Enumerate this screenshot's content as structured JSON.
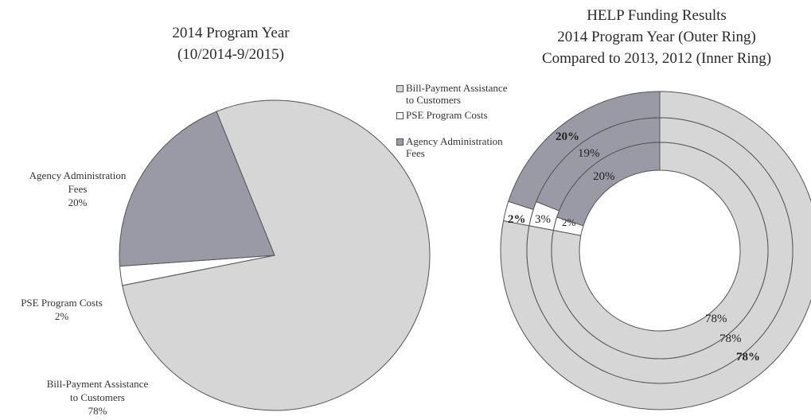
{
  "colors": {
    "bill_payment": "#d6d6d6",
    "pse_program": "#ffffff",
    "agency_admin": "#9a9aa6",
    "stroke": "#555555"
  },
  "left_title": {
    "line1": "2014 Program Year",
    "line2": "(10/2014-9/2015)"
  },
  "right_title": {
    "line1": "HELP Funding Results",
    "line2": "2014 Program Year (Outer Ring)",
    "line3": "Compared to 2013, 2012 (Inner Ring)"
  },
  "legend": [
    {
      "label_line1": "Bill-Payment Assistance",
      "label_line2": "to Customers",
      "color_key": "bill_payment"
    },
    {
      "label_line1": "PSE Program Costs",
      "label_line2": "",
      "color_key": "pse_program"
    },
    {
      "label_line1": "Agency Administration",
      "label_line2": "Fees",
      "color_key": "agency_admin"
    }
  ],
  "left_labels": {
    "agency": {
      "line1": "Agency Administration",
      "line2": "Fees",
      "line3": "20%"
    },
    "pse": {
      "line1": "PSE Program Costs",
      "line2": "2%"
    },
    "bill": {
      "line1": "Bill-Payment  Assistance",
      "line2": "to Customers",
      "line3": "78%"
    }
  },
  "chart_data": [
    {
      "type": "pie",
      "title": "2014 Program Year (10/2014-9/2015)",
      "categories": [
        "Bill-Payment Assistance to Customers",
        "PSE Program Costs",
        "Agency Administration Fees"
      ],
      "values": [
        78,
        2,
        20
      ],
      "unit": "%"
    },
    {
      "type": "pie",
      "subtype": "donut",
      "title": "HELP Funding Results 2014 Program Year (Outer Ring) Compared to 2013, 2012 (Inner Ring)",
      "categories": [
        "Bill-Payment Assistance to Customers",
        "PSE Program Costs",
        "Agency Administration Fees"
      ],
      "series": [
        {
          "name": "2014",
          "ring": "outer",
          "values": [
            78,
            2,
            20
          ],
          "labels": [
            "78%",
            "2%",
            "20%"
          ]
        },
        {
          "name": "2013",
          "ring": "middle",
          "values": [
            78,
            3,
            19
          ],
          "labels": [
            "78%",
            "3%",
            "19%"
          ]
        },
        {
          "name": "2012",
          "ring": "inner",
          "values": [
            78,
            2,
            20
          ],
          "labels": [
            "78%",
            "2%",
            "20%"
          ]
        }
      ],
      "unit": "%"
    }
  ]
}
